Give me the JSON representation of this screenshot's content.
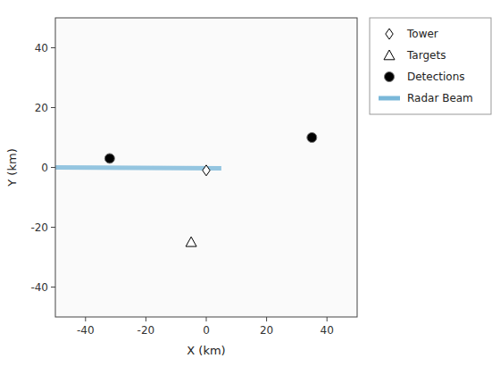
{
  "chart_data": {
    "type": "scatter",
    "xlabel": "X (km)",
    "ylabel": "Y (km)",
    "xlim": [
      -50,
      50
    ],
    "ylim": [
      -50,
      50
    ],
    "xticks": [
      -40,
      -20,
      0,
      20,
      40
    ],
    "yticks": [
      -40,
      -20,
      0,
      20,
      40
    ],
    "grid": false,
    "legend": "right",
    "series": [
      {
        "name": "Tower",
        "type": "scatter",
        "marker": "open-diamond",
        "color": "black",
        "x": [
          0
        ],
        "values": [
          -1
        ]
      },
      {
        "name": "Targets",
        "type": "scatter",
        "marker": "open-triangle",
        "color": "black",
        "x": [
          -5
        ],
        "values": [
          -25
        ]
      },
      {
        "name": "Detections",
        "type": "scatter",
        "marker": "circle",
        "color": "black",
        "x": [
          -32,
          35
        ],
        "values": [
          3,
          10
        ]
      },
      {
        "name": "Radar Beam",
        "type": "line",
        "line_style": "solid",
        "color": "#7ab8d9",
        "x": [
          -50,
          5
        ],
        "values": [
          0,
          -0.3
        ]
      }
    ]
  }
}
